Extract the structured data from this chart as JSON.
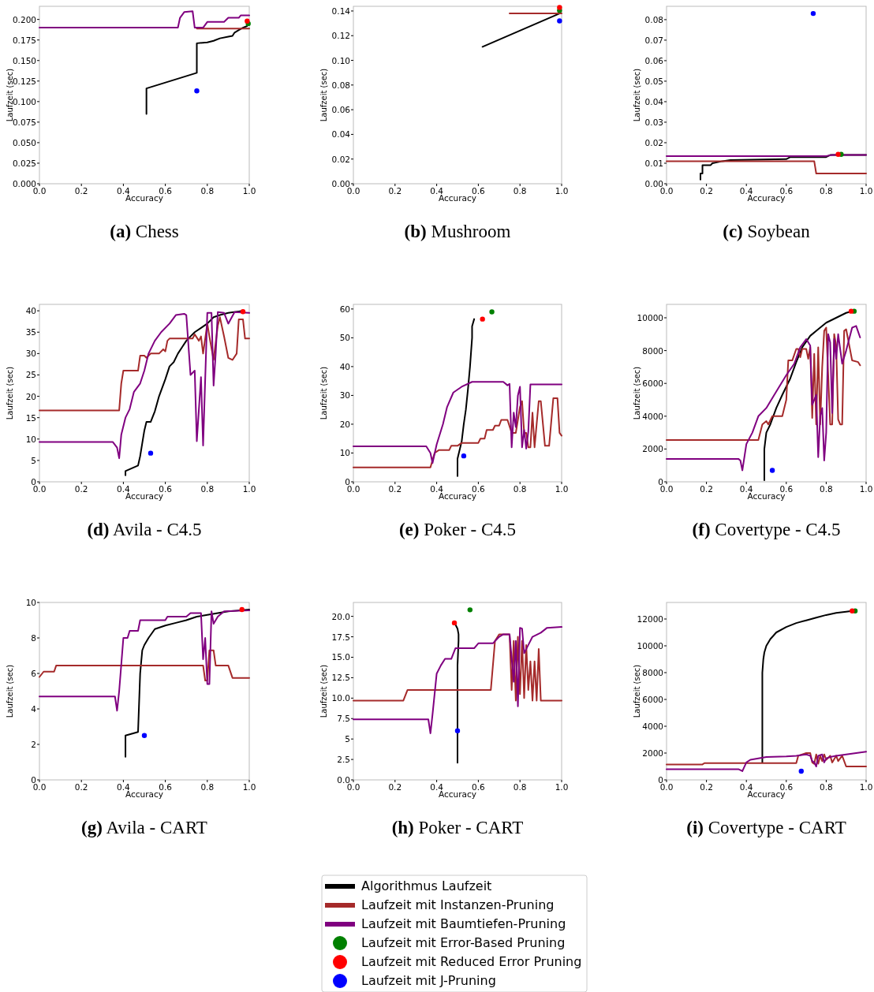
{
  "chart_data": [
    {
      "type": "line",
      "title": "(a) Chess",
      "xlabel": "Accuracy",
      "ylabel": "Laufzeit (sec)",
      "xlim": [
        0,
        1
      ],
      "xticks": [
        {
          "value": 0,
          "label": "0.0"
        },
        {
          "value": 0.2,
          "label": "0.2"
        },
        {
          "value": 0.4,
          "label": "0.4"
        },
        {
          "value": 0.6,
          "label": "0.6"
        },
        {
          "value": 0.8,
          "label": "0.8"
        },
        {
          "value": 1,
          "label": "1.0"
        }
      ],
      "ylim": [
        0,
        0.216
      ],
      "yticks": [
        {
          "value": 0,
          "label": "0.000"
        },
        {
          "value": 0.025,
          "label": "0.025"
        },
        {
          "value": 0.05,
          "label": "0.050"
        },
        {
          "value": 0.075,
          "label": "0.075"
        },
        {
          "value": 0.1,
          "label": "0.100"
        },
        {
          "value": 0.125,
          "label": "0.125"
        },
        {
          "value": 0.15,
          "label": "0.150"
        },
        {
          "value": 0.175,
          "label": "0.175"
        },
        {
          "value": 0.2,
          "label": "0.200"
        }
      ],
      "legend": "bottom",
      "series": [
        {
          "type": "line",
          "name": "Algorithmus Laufzeit",
          "color": "#000000",
          "x": [
            0.51,
            0.51,
            0.75,
            0.75,
            0.8,
            0.83,
            0.86,
            0.9,
            0.92,
            0.93,
            0.95,
            0.97,
            0.99
          ],
          "values": [
            0.085,
            0.116,
            0.135,
            0.171,
            0.172,
            0.174,
            0.177,
            0.179,
            0.18,
            0.184,
            0.187,
            0.19,
            0.192
          ]
        },
        {
          "type": "line",
          "name": "Laufzeit mit Instanzen-Pruning",
          "color": "#a52a2a",
          "x": [
            0.75,
            1.0
          ],
          "values": [
            0.189,
            0.189
          ]
        },
        {
          "type": "line",
          "name": "Laufzeit mit Baumtiefen-Pruning",
          "color": "#800080",
          "x": [
            0,
            0.66,
            0.67,
            0.69,
            0.73,
            0.74,
            0.78,
            0.8,
            0.88,
            0.9,
            0.95,
            0.96,
            1.0
          ],
          "values": [
            0.19,
            0.19,
            0.202,
            0.209,
            0.21,
            0.19,
            0.19,
            0.197,
            0.197,
            0.202,
            0.202,
            0.205,
            0.205
          ]
        },
        {
          "type": "scatter",
          "name": "Laufzeit mit Error-Based Pruning",
          "color": "#008000",
          "x": [
            0.995
          ],
          "values": [
            0.195
          ]
        },
        {
          "type": "scatter",
          "name": "Laufzeit mit Reduced Error Pruning",
          "color": "#ff0000",
          "x": [
            0.99
          ],
          "values": [
            0.198
          ]
        },
        {
          "type": "scatter",
          "name": "Laufzeit mit J-Pruning",
          "color": "#0000ff",
          "x": [
            0.75
          ],
          "values": [
            0.113
          ]
        }
      ]
    },
    {
      "type": "line",
      "title": "(b) Mushroom",
      "xlabel": "Accuracy",
      "ylabel": "Laufzeit (sec)",
      "xlim": [
        0,
        1
      ],
      "xticks": [
        {
          "value": 0,
          "label": "0.0"
        },
        {
          "value": 0.2,
          "label": "0.2"
        },
        {
          "value": 0.4,
          "label": "0.4"
        },
        {
          "value": 0.6,
          "label": "0.6"
        },
        {
          "value": 0.8,
          "label": "0.8"
        },
        {
          "value": 1,
          "label": "1.0"
        }
      ],
      "ylim": [
        0,
        0.1438
      ],
      "yticks": [
        {
          "value": 0,
          "label": "0.00"
        },
        {
          "value": 0.02,
          "label": "0.02"
        },
        {
          "value": 0.04,
          "label": "0.04"
        },
        {
          "value": 0.06,
          "label": "0.06"
        },
        {
          "value": 0.08,
          "label": "0.08"
        },
        {
          "value": 0.1,
          "label": "0.10"
        },
        {
          "value": 0.12,
          "label": "0.12"
        },
        {
          "value": 0.14,
          "label": "0.14"
        }
      ],
      "series": [
        {
          "type": "line",
          "color": "#000000",
          "x": [
            0.62,
            0.99
          ],
          "values": [
            0.111,
            0.138
          ]
        },
        {
          "type": "line",
          "color": "#a52a2a",
          "x": [
            0.75,
            1.0
          ],
          "values": [
            0.138,
            0.138
          ]
        },
        {
          "type": "scatter",
          "color": "#008000",
          "x": [
            0.99
          ],
          "values": [
            0.1405
          ]
        },
        {
          "type": "scatter",
          "color": "#ff0000",
          "x": [
            0.99
          ],
          "values": [
            0.1428
          ]
        },
        {
          "type": "scatter",
          "color": "#0000ff",
          "x": [
            0.99
          ],
          "values": [
            0.132
          ]
        }
      ]
    },
    {
      "type": "line",
      "title": "(c) Soybean",
      "xlabel": "Accuracy",
      "ylabel": "Laufzeit (sec)",
      "xlim": [
        0,
        1
      ],
      "xticks": [
        {
          "value": 0,
          "label": "0.0"
        },
        {
          "value": 0.2,
          "label": "0.2"
        },
        {
          "value": 0.4,
          "label": "0.4"
        },
        {
          "value": 0.6,
          "label": "0.6"
        },
        {
          "value": 0.8,
          "label": "0.8"
        },
        {
          "value": 1,
          "label": "1.0"
        }
      ],
      "ylim": [
        0,
        0.0865
      ],
      "yticks": [
        {
          "value": 0,
          "label": "0.00"
        },
        {
          "value": 0.01,
          "label": "0.01"
        },
        {
          "value": 0.02,
          "label": "0.02"
        },
        {
          "value": 0.03,
          "label": "0.03"
        },
        {
          "value": 0.04,
          "label": "0.04"
        },
        {
          "value": 0.05,
          "label": "0.05"
        },
        {
          "value": 0.06,
          "label": "0.06"
        },
        {
          "value": 0.07,
          "label": "0.07"
        },
        {
          "value": 0.08,
          "label": "0.08"
        }
      ],
      "series": [
        {
          "type": "line",
          "color": "#000000",
          "x": [
            0.17,
            0.17,
            0.18,
            0.18,
            0.22,
            0.23,
            0.28,
            0.32,
            0.6,
            0.62,
            0.8,
            0.82,
            1.0
          ],
          "values": [
            0.002,
            0.005,
            0.005,
            0.009,
            0.009,
            0.01,
            0.011,
            0.0115,
            0.012,
            0.013,
            0.013,
            0.014,
            0.014
          ]
        },
        {
          "type": "line",
          "color": "#a52a2a",
          "x": [
            0,
            0.74,
            0.75,
            1.0
          ],
          "values": [
            0.011,
            0.011,
            0.005,
            0.005
          ]
        },
        {
          "type": "line",
          "color": "#800080",
          "x": [
            0,
            0.8,
            0.83,
            1.0
          ],
          "values": [
            0.0135,
            0.0135,
            0.014,
            0.014
          ]
        },
        {
          "type": "scatter",
          "color": "#008000",
          "x": [
            0.875
          ],
          "values": [
            0.0143
          ]
        },
        {
          "type": "scatter",
          "color": "#ff0000",
          "x": [
            0.86
          ],
          "values": [
            0.0143
          ]
        },
        {
          "type": "scatter",
          "color": "#0000ff",
          "x": [
            0.735
          ],
          "values": [
            0.083
          ]
        }
      ]
    },
    {
      "type": "line",
      "title": "(d) Avila - C4.5",
      "xlabel": "Accuracy",
      "ylabel": "Laufzeit (sec)",
      "xlim": [
        0,
        1
      ],
      "xticks": [
        {
          "value": 0,
          "label": "0.0"
        },
        {
          "value": 0.2,
          "label": "0.2"
        },
        {
          "value": 0.4,
          "label": "0.4"
        },
        {
          "value": 0.6,
          "label": "0.6"
        },
        {
          "value": 0.8,
          "label": "0.8"
        },
        {
          "value": 1,
          "label": "1.0"
        }
      ],
      "ylim": [
        0,
        41.5
      ],
      "yticks": [
        0,
        5,
        10,
        15,
        20,
        25,
        30,
        35,
        40
      ],
      "series": [
        {
          "type": "line",
          "color": "#000000",
          "x": [
            0.41,
            0.41,
            0.47,
            0.48,
            0.49,
            0.5,
            0.51,
            0.53,
            0.55,
            0.57,
            0.6,
            0.62,
            0.64,
            0.66,
            0.68,
            0.7,
            0.72,
            0.74,
            0.77,
            0.8,
            0.83,
            0.86,
            0.9,
            0.97
          ],
          "values": [
            1.5,
            2.5,
            3.8,
            6,
            9,
            12,
            14,
            14,
            16.5,
            20,
            24,
            27,
            28,
            30,
            31.5,
            33,
            34,
            35,
            36,
            37,
            38.5,
            39,
            39.5,
            40
          ]
        },
        {
          "type": "line",
          "color": "#a52a2a",
          "x": [
            0,
            0.38,
            0.39,
            0.4,
            0.47,
            0.48,
            0.5,
            0.51,
            0.53,
            0.57,
            0.59,
            0.6,
            0.61,
            0.62,
            0.73,
            0.74,
            0.76,
            0.77,
            0.78,
            0.8,
            0.81,
            0.83,
            0.85,
            0.86,
            0.88,
            0.9,
            0.92,
            0.94,
            0.95,
            0.97,
            0.98,
            1.0
          ],
          "values": [
            16.7,
            16.7,
            23,
            26,
            26,
            29.5,
            29.5,
            29,
            30,
            30,
            31,
            30.5,
            33,
            33.5,
            33.5,
            34.5,
            33,
            34,
            30,
            37,
            34,
            28.5,
            36.5,
            38.5,
            34,
            29,
            28.5,
            30,
            38,
            38,
            33.5,
            33.5
          ]
        },
        {
          "type": "line",
          "color": "#800080",
          "x": [
            0,
            0.35,
            0.37,
            0.38,
            0.39,
            0.41,
            0.43,
            0.45,
            0.48,
            0.5,
            0.52,
            0.55,
            0.58,
            0.62,
            0.65,
            0.69,
            0.7,
            0.72,
            0.74,
            0.75,
            0.77,
            0.78,
            0.8,
            0.82,
            0.83,
            0.84,
            0.85,
            0.88,
            0.9,
            0.93,
            1.0
          ],
          "values": [
            9.3,
            9.3,
            8,
            5.5,
            11,
            15,
            17,
            21,
            23,
            26,
            30,
            33,
            35,
            37,
            39,
            39.3,
            39,
            25,
            26,
            9.5,
            24.5,
            8.5,
            39.5,
            39.5,
            22.5,
            30,
            39.7,
            39.5,
            37,
            39.7,
            39.5
          ]
        },
        {
          "type": "scatter",
          "color": "#ff0000",
          "x": [
            0.97
          ],
          "values": [
            39.8
          ]
        },
        {
          "type": "scatter",
          "color": "#0000ff",
          "x": [
            0.53
          ],
          "values": [
            6.7
          ]
        }
      ]
    },
    {
      "type": "line",
      "title": "(e) Poker - C4.5",
      "xlabel": "Accuracy",
      "ylabel": "Laufzeit (sec)",
      "xlim": [
        0,
        1
      ],
      "xticks": [
        {
          "value": 0,
          "label": "0.0"
        },
        {
          "value": 0.2,
          "label": "0.2"
        },
        {
          "value": 0.4,
          "label": "0.4"
        },
        {
          "value": 0.6,
          "label": "0.6"
        },
        {
          "value": 0.8,
          "label": "0.8"
        },
        {
          "value": 1,
          "label": "1.0"
        }
      ],
      "ylim": [
        0,
        61.6
      ],
      "yticks": [
        0,
        10,
        20,
        30,
        40,
        50,
        60
      ],
      "series": [
        {
          "type": "line",
          "color": "#000000",
          "x": [
            0.5,
            0.5,
            0.51,
            0.52,
            0.53,
            0.54,
            0.55,
            0.56,
            0.565,
            0.57,
            0.57,
            0.58
          ],
          "values": [
            2,
            8,
            11,
            14,
            20,
            25,
            32,
            40,
            45,
            50,
            54,
            56.5
          ]
        },
        {
          "type": "line",
          "color": "#a52a2a",
          "x": [
            0,
            0.37,
            0.39,
            0.41,
            0.46,
            0.47,
            0.5,
            0.52,
            0.6,
            0.61,
            0.63,
            0.64,
            0.67,
            0.68,
            0.7,
            0.71,
            0.74,
            0.76,
            0.78,
            0.8,
            0.81,
            0.82,
            0.83,
            0.84,
            0.85,
            0.86,
            0.87,
            0.89,
            0.9,
            0.92,
            0.94,
            0.96,
            0.98,
            0.99,
            1.0
          ],
          "values": [
            5,
            5,
            10,
            11,
            11,
            12.5,
            12.5,
            13.5,
            13.5,
            15,
            15,
            18,
            18,
            19.5,
            19.5,
            21.5,
            21.5,
            17,
            17,
            26,
            28,
            17,
            17,
            12,
            12,
            24,
            12,
            28,
            28,
            12.5,
            12.5,
            29,
            29,
            17,
            16
          ]
        },
        {
          "type": "line",
          "color": "#800080",
          "x": [
            0,
            0.35,
            0.37,
            0.38,
            0.4,
            0.43,
            0.45,
            0.48,
            0.52,
            0.57,
            0.72,
            0.74,
            0.75,
            0.76,
            0.77,
            0.78,
            0.79,
            0.8,
            0.81,
            0.82,
            0.83,
            0.84,
            0.85,
            1.0
          ],
          "values": [
            12.3,
            12.3,
            10,
            6.5,
            13,
            20,
            26,
            31,
            33,
            34.7,
            34.7,
            33.5,
            34,
            12,
            24,
            19,
            30,
            33,
            12,
            18,
            11.5,
            17.5,
            33.8,
            33.8
          ]
        },
        {
          "type": "scatter",
          "color": "#008000",
          "x": [
            0.665
          ],
          "values": [
            59
          ]
        },
        {
          "type": "scatter",
          "color": "#ff0000",
          "x": [
            0.62
          ],
          "values": [
            56.5
          ]
        },
        {
          "type": "scatter",
          "color": "#0000ff",
          "x": [
            0.53
          ],
          "values": [
            9
          ]
        }
      ]
    },
    {
      "type": "line",
      "title": "(f) Covertype - C4.5",
      "xlabel": "Accuracy",
      "ylabel": "Laufzeit (sec)",
      "xlim": [
        0,
        1
      ],
      "xticks": [
        {
          "value": 0,
          "label": "0.0"
        },
        {
          "value": 0.2,
          "label": "0.2"
        },
        {
          "value": 0.4,
          "label": "0.4"
        },
        {
          "value": 0.6,
          "label": "0.6"
        },
        {
          "value": 0.8,
          "label": "0.8"
        },
        {
          "value": 1,
          "label": "1.0"
        }
      ],
      "ylim": [
        0,
        10817
      ],
      "yticks": [
        0,
        2000,
        4000,
        6000,
        8000,
        10000
      ],
      "series": [
        {
          "type": "line",
          "color": "#000000",
          "x": [
            0.49,
            0.49,
            0.5,
            0.52,
            0.55,
            0.58,
            0.62,
            0.65,
            0.68,
            0.72,
            0.76,
            0.8,
            0.85,
            0.9,
            0.93
          ],
          "values": [
            100,
            2000,
            3000,
            3500,
            4500,
            5300,
            6300,
            7300,
            8200,
            8900,
            9300,
            9700,
            10000,
            10300,
            10400
          ]
        },
        {
          "type": "line",
          "color": "#a52a2a",
          "x": [
            0,
            0.46,
            0.48,
            0.5,
            0.51,
            0.53,
            0.58,
            0.6,
            0.61,
            0.63,
            0.65,
            0.66,
            0.67,
            0.68,
            0.7,
            0.71,
            0.72,
            0.73,
            0.74,
            0.75,
            0.76,
            0.77,
            0.78,
            0.79,
            0.8,
            0.81,
            0.82,
            0.83,
            0.84,
            0.85,
            0.86,
            0.87,
            0.88,
            0.89,
            0.9,
            0.93,
            0.96,
            0.97
          ],
          "values": [
            2550,
            2550,
            3500,
            3700,
            3500,
            4000,
            4000,
            5000,
            7400,
            7400,
            8100,
            8100,
            7600,
            8100,
            8100,
            7500,
            8200,
            3900,
            7800,
            3500,
            8200,
            3500,
            7000,
            9200,
            9400,
            6500,
            3500,
            3500,
            9000,
            8300,
            3800,
            3500,
            3500,
            9200,
            9300,
            7400,
            7300,
            7100
          ]
        },
        {
          "type": "line",
          "color": "#800080",
          "x": [
            0,
            0.36,
            0.37,
            0.38,
            0.4,
            0.43,
            0.46,
            0.5,
            0.55,
            0.6,
            0.64,
            0.67,
            0.7,
            0.72,
            0.73,
            0.75,
            0.76,
            0.77,
            0.78,
            0.79,
            0.8,
            0.81,
            0.82,
            0.83,
            0.84,
            0.85,
            0.86,
            0.88,
            0.9,
            0.93,
            0.95,
            0.97
          ],
          "values": [
            1400,
            1400,
            1300,
            700,
            2300,
            3000,
            4000,
            4500,
            5500,
            6500,
            7200,
            8200,
            8700,
            8300,
            4700,
            5300,
            1500,
            4000,
            4500,
            1300,
            3000,
            9000,
            8500,
            4200,
            8700,
            7500,
            9000,
            7200,
            8000,
            9400,
            9500,
            8800
          ]
        },
        {
          "type": "scatter",
          "color": "#008000",
          "x": [
            0.94
          ],
          "values": [
            10400
          ]
        },
        {
          "type": "scatter",
          "color": "#ff0000",
          "x": [
            0.925
          ],
          "values": [
            10400
          ]
        },
        {
          "type": "scatter",
          "color": "#0000ff",
          "x": [
            0.53
          ],
          "values": [
            700
          ]
        }
      ]
    },
    {
      "type": "line",
      "title": "(g) Avila - CART",
      "xlabel": "Accuracy",
      "ylabel": "Laufzeit (sec)",
      "xlim": [
        0,
        1
      ],
      "xticks": [
        {
          "value": 0,
          "label": "0.0"
        },
        {
          "value": 0.2,
          "label": "0.2"
        },
        {
          "value": 0.4,
          "label": "0.4"
        },
        {
          "value": 0.6,
          "label": "0.6"
        },
        {
          "value": 0.8,
          "label": "0.8"
        },
        {
          "value": 1,
          "label": "1.0"
        }
      ],
      "ylim": [
        0,
        10
      ],
      "yticks": [
        0,
        2,
        4,
        6,
        8,
        10
      ],
      "series": [
        {
          "type": "line",
          "color": "#000000",
          "x": [
            0.41,
            0.41,
            0.47,
            0.48,
            0.49,
            0.5,
            0.52,
            0.55,
            0.6,
            0.65,
            0.7,
            0.75,
            0.8,
            0.85,
            0.9,
            0.95,
            1.0
          ],
          "values": [
            1.3,
            2.5,
            2.7,
            6,
            7.3,
            7.6,
            8,
            8.5,
            8.7,
            8.85,
            9,
            9.2,
            9.3,
            9.4,
            9.5,
            9.55,
            9.6
          ]
        },
        {
          "type": "line",
          "color": "#a52a2a",
          "x": [
            0,
            0.02,
            0.07,
            0.08,
            0.78,
            0.79,
            0.8,
            0.81,
            0.83,
            0.84,
            0.9,
            0.92,
            1.0
          ],
          "values": [
            5.8,
            6.1,
            6.1,
            6.45,
            6.45,
            5.6,
            5.6,
            7.3,
            7.3,
            6.45,
            6.45,
            5.75,
            5.75
          ]
        },
        {
          "type": "line",
          "color": "#800080",
          "x": [
            0,
            0.36,
            0.37,
            0.38,
            0.39,
            0.4,
            0.42,
            0.43,
            0.47,
            0.48,
            0.6,
            0.61,
            0.7,
            0.72,
            0.77,
            0.78,
            0.79,
            0.8,
            0.81,
            0.82,
            0.83,
            0.85,
            0.88,
            1.0
          ],
          "values": [
            4.7,
            4.7,
            3.9,
            5,
            6.5,
            8,
            8,
            8.4,
            8.4,
            9,
            9,
            9.2,
            9.2,
            9.4,
            9.4,
            6.8,
            8,
            5.4,
            5.4,
            9.5,
            8.8,
            9.2,
            9.5,
            9.55
          ]
        },
        {
          "type": "scatter",
          "color": "#ff0000",
          "x": [
            0.965
          ],
          "values": [
            9.6
          ]
        },
        {
          "type": "scatter",
          "color": "#0000ff",
          "x": [
            0.5
          ],
          "values": [
            2.5
          ]
        }
      ]
    },
    {
      "type": "line",
      "title": "(h) Poker - CART",
      "xlabel": "Accuracy",
      "ylabel": "Laufzeit (sec)",
      "xlim": [
        0,
        1
      ],
      "xticks": [
        {
          "value": 0,
          "label": "0.0"
        },
        {
          "value": 0.2,
          "label": "0.2"
        },
        {
          "value": 0.4,
          "label": "0.4"
        },
        {
          "value": 0.6,
          "label": "0.6"
        },
        {
          "value": 0.8,
          "label": "0.8"
        },
        {
          "value": 1,
          "label": "1.0"
        }
      ],
      "ylim": [
        0,
        21.7
      ],
      "yticks": [
        {
          "value": 0,
          "label": "0.0"
        },
        2.5,
        5,
        7.5,
        {
          "value": 10,
          "label": "10.0"
        },
        12.5,
        {
          "value": 15,
          "label": "15.0"
        },
        17.5,
        {
          "value": 20,
          "label": "20.0"
        }
      ],
      "series": [
        {
          "type": "line",
          "color": "#000000",
          "x": [
            0.5,
            0.5,
            0.5,
            0.5,
            0.505,
            0.505,
            0.5,
            0.49,
            0.48
          ],
          "values": [
            2.1,
            6,
            10,
            14,
            17,
            17.8,
            18.5,
            19,
            19.2
          ]
        },
        {
          "type": "line",
          "color": "#a52a2a",
          "x": [
            0,
            0.24,
            0.26,
            0.66,
            0.68,
            0.7,
            0.75,
            0.76,
            0.77,
            0.78,
            0.79,
            0.8,
            0.81,
            0.82,
            0.83,
            0.84,
            0.85,
            0.86,
            0.87,
            0.88,
            0.89,
            0.9,
            1.0
          ],
          "values": [
            9.7,
            9.7,
            11,
            11,
            17,
            17.8,
            17.8,
            11,
            17,
            9.7,
            17.5,
            10.5,
            17,
            10,
            16.5,
            11,
            14.5,
            9.7,
            14.5,
            9.7,
            16,
            9.7,
            9.7
          ]
        },
        {
          "type": "line",
          "color": "#800080",
          "x": [
            0,
            0.36,
            0.37,
            0.38,
            0.4,
            0.42,
            0.44,
            0.47,
            0.49,
            0.58,
            0.6,
            0.67,
            0.7,
            0.72,
            0.75,
            0.77,
            0.78,
            0.79,
            0.8,
            0.81,
            0.82,
            0.84,
            0.86,
            0.9,
            0.93,
            1.0
          ],
          "values": [
            7.4,
            7.4,
            5.7,
            8,
            13,
            14,
            14.8,
            14.8,
            16.1,
            16.1,
            16.7,
            16.7,
            17.5,
            17.8,
            17.8,
            12,
            17,
            9,
            18.6,
            18.5,
            15.5,
            16.5,
            17.5,
            18,
            18.6,
            18.7
          ]
        },
        {
          "type": "scatter",
          "color": "#008000",
          "x": [
            0.56
          ],
          "values": [
            20.8
          ]
        },
        {
          "type": "scatter",
          "color": "#ff0000",
          "x": [
            0.485
          ],
          "values": [
            19.2
          ]
        },
        {
          "type": "scatter",
          "color": "#0000ff",
          "x": [
            0.5
          ],
          "values": [
            6
          ]
        }
      ]
    },
    {
      "type": "line",
      "title": "(i) Covertype - CART",
      "xlabel": "Accuracy",
      "ylabel": "Laufzeit (sec)",
      "xlim": [
        0,
        1
      ],
      "xticks": [
        {
          "value": 0,
          "label": "0.0"
        },
        {
          "value": 0.2,
          "label": "0.2"
        },
        {
          "value": 0.4,
          "label": "0.4"
        },
        {
          "value": 0.6,
          "label": "0.6"
        },
        {
          "value": 0.8,
          "label": "0.8"
        },
        {
          "value": 1,
          "label": "1.0"
        }
      ],
      "ylim": [
        0,
        13235
      ],
      "yticks": [
        0,
        2000,
        4000,
        6000,
        8000,
        10000,
        12000
      ],
      "series": [
        {
          "type": "line",
          "color": "#000000",
          "x": [
            0.48,
            0.48,
            0.485,
            0.49,
            0.5,
            0.52,
            0.55,
            0.6,
            0.65,
            0.7,
            0.75,
            0.8,
            0.85,
            0.9,
            0.93
          ],
          "values": [
            1300,
            8000,
            9000,
            9500,
            10000,
            10500,
            11000,
            11400,
            11700,
            11900,
            12100,
            12300,
            12450,
            12550,
            12600
          ]
        },
        {
          "type": "line",
          "color": "#a52a2a",
          "x": [
            0,
            0.18,
            0.19,
            0.65,
            0.66,
            0.68,
            0.7,
            0.72,
            0.73,
            0.74,
            0.75,
            0.76,
            0.77,
            0.78,
            0.79,
            0.8,
            0.82,
            0.83,
            0.85,
            0.86,
            0.88,
            0.9,
            1.0
          ],
          "values": [
            1150,
            1150,
            1250,
            1250,
            1800,
            1900,
            2000,
            2000,
            1300,
            1200,
            1900,
            1200,
            1800,
            1400,
            1900,
            1500,
            1800,
            1300,
            1800,
            1400,
            1800,
            1000,
            1000
          ]
        },
        {
          "type": "line",
          "color": "#800080",
          "x": [
            0,
            0.36,
            0.38,
            0.4,
            0.42,
            0.5,
            0.6,
            0.65,
            0.7,
            0.72,
            0.73,
            0.74,
            0.75,
            0.76,
            0.78,
            0.79,
            0.8,
            0.82,
            0.85,
            0.9,
            1.0
          ],
          "values": [
            800,
            800,
            650,
            1300,
            1500,
            1700,
            1750,
            1800,
            1900,
            1800,
            1400,
            1300,
            1000,
            1800,
            1900,
            1300,
            1600,
            1700,
            1800,
            1900,
            2100
          ]
        },
        {
          "type": "scatter",
          "color": "#008000",
          "x": [
            0.945
          ],
          "values": [
            12600
          ]
        },
        {
          "type": "scatter",
          "color": "#ff0000",
          "x": [
            0.93
          ],
          "values": [
            12600
          ]
        },
        {
          "type": "scatter",
          "color": "#0000ff",
          "x": [
            0.675
          ],
          "values": [
            650
          ]
        }
      ]
    }
  ]
}
